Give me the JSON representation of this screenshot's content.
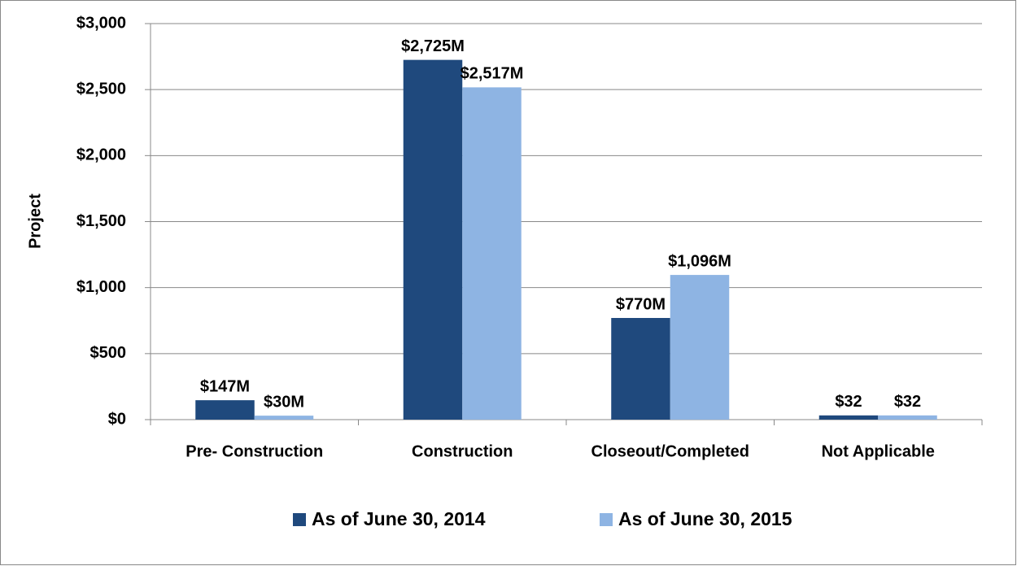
{
  "chart_data": {
    "type": "bar",
    "y_label": "Project",
    "categories": [
      "Pre- Construction",
      "Construction",
      "Closeout/Completed",
      "Not Applicable"
    ],
    "series": [
      {
        "name": "As of June 30, 2014",
        "color": "#1f497d",
        "values": [
          147,
          2725,
          770,
          32
        ],
        "value_labels": [
          "$147M",
          "$2,725M",
          "$770M",
          "$32"
        ]
      },
      {
        "name": "As of June 30, 2015",
        "color": "#8eb4e3",
        "values": [
          30,
          2517,
          1096,
          32
        ],
        "value_labels": [
          "$30M",
          "$2,517M",
          "$1,096M",
          "$32"
        ]
      }
    ],
    "ylim": [
      0,
      3000
    ],
    "yticks": [
      {
        "value": 0,
        "label": "$0"
      },
      {
        "value": 500,
        "label": "$500"
      },
      {
        "value": 1000,
        "label": "$1,000"
      },
      {
        "value": 1500,
        "label": "$1,500"
      },
      {
        "value": 2000,
        "label": "$2,000"
      },
      {
        "value": 2500,
        "label": "$2,500"
      },
      {
        "value": 3000,
        "label": "$3,000"
      }
    ],
    "grid": true,
    "legend": "bottom"
  }
}
